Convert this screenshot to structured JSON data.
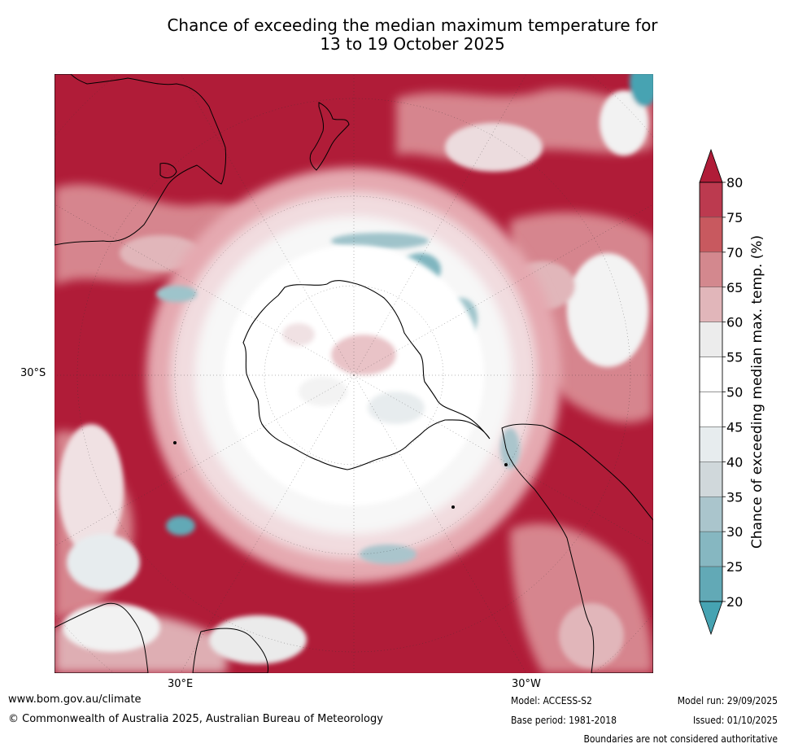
{
  "title": {
    "line1": "Chance of exceeding the median maximum temperature for",
    "line2": "13 to 19 October 2025"
  },
  "map": {
    "projection": "south-polar-stereographic",
    "lat_label": "30°S",
    "lon_labels": [
      "30°E",
      "30°W"
    ],
    "colors": {
      "very_warm": "#b01c38",
      "warm": "#c8505f",
      "warmish": "#dca7ad",
      "neutral": "#ffffff",
      "neutral_grey": "#ebebeb",
      "cool": "#aac5cc",
      "ocean_cold": "#46a3b2"
    }
  },
  "colorbar": {
    "label": "Chance of exceeding median max. temp. (%)",
    "ticks": [
      "80",
      "75",
      "70",
      "65",
      "60",
      "55",
      "50",
      "45",
      "40",
      "35",
      "30",
      "25",
      "20"
    ],
    "colors": [
      "#b01c38",
      "#bc3a4f",
      "#c8595f",
      "#d3888e",
      "#e1b6ba",
      "#ececec",
      "#ffffff",
      "#ffffff",
      "#e7ecee",
      "#d0d8db",
      "#aac5cc",
      "#86b7c1",
      "#62a9b6",
      "#46a3b2"
    ]
  },
  "footer": {
    "website": "www.bom.gov.au/climate",
    "copyright": "© Commonwealth of Australia 2025, Australian Bureau of Meteorology",
    "model": "Model: ACCESS-S2",
    "base_period": "Base period: 1981-2018",
    "model_run": "Model run: 29/09/2025",
    "issued": "Issued: 01/10/2025",
    "disclaimer": "Boundaries are not considered authoritative"
  }
}
